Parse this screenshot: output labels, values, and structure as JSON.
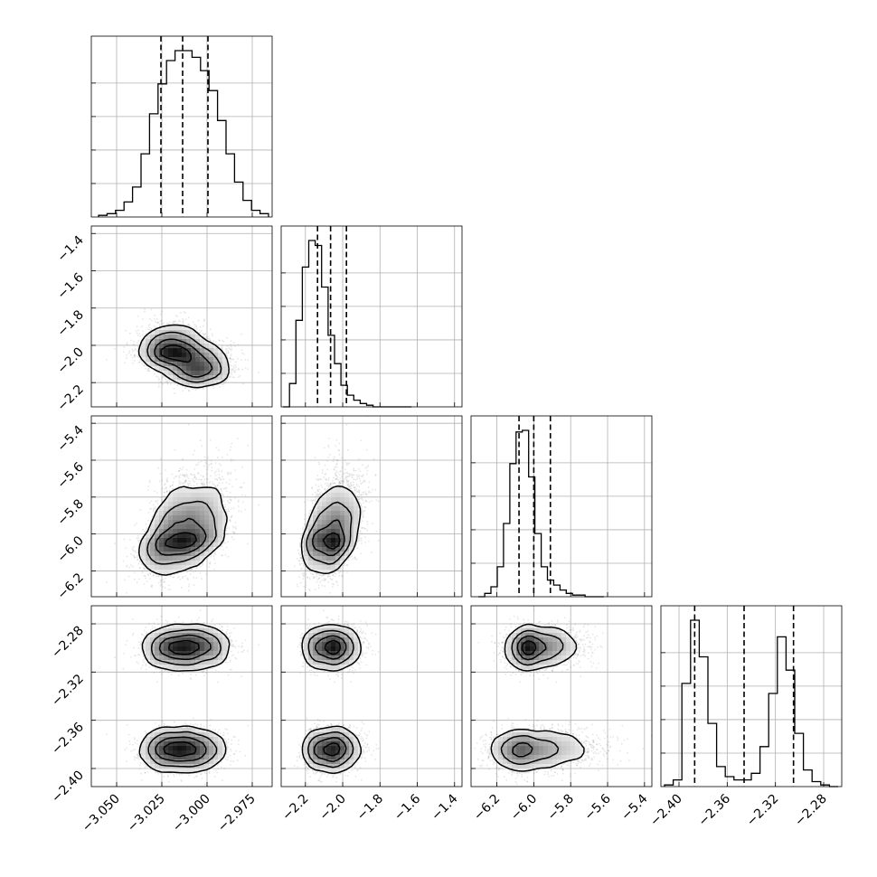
{
  "chart_data": {
    "type": "corner",
    "grid": true,
    "colors": {
      "line": "#000000",
      "samples": "#777777",
      "grid": "#b0b0b0"
    },
    "parameters": [
      {
        "range": [
          -3.064,
          -2.964
        ],
        "ticks": [
          -3.05,
          -3.025,
          -3.0,
          -2.975
        ],
        "tick_labels": [
          "−3.050",
          "−3.025",
          "−3.000",
          "−2.975"
        ],
        "quantiles": [
          -3.0255,
          -3.0135,
          -2.9995
        ],
        "hist": [
          1,
          2,
          4,
          9,
          18,
          38,
          62,
          80,
          94,
          100,
          100,
          96,
          88,
          76,
          58,
          38,
          21,
          10,
          4,
          2
        ]
      },
      {
        "range": [
          -2.33,
          -1.36
        ],
        "ticks": [
          -2.2,
          -2.0,
          -1.8,
          -1.6,
          -1.4
        ],
        "tick_labels": [
          "−2.2",
          "−2.0",
          "−1.8",
          "−1.6",
          "−1.4"
        ],
        "quantiles": [
          -2.135,
          -2.065,
          -1.98
        ],
        "hist": [
          0,
          14,
          52,
          84,
          100,
          97,
          72,
          43,
          26,
          13,
          7,
          4,
          2,
          1,
          0,
          0,
          0,
          0,
          0,
          0
        ]
      },
      {
        "range": [
          -6.34,
          -5.36
        ],
        "ticks": [
          -6.2,
          -6.0,
          -5.8,
          -5.6,
          -5.4
        ],
        "tick_labels": [
          "−6.2",
          "−6.0",
          "−5.8",
          "−5.6",
          "−5.4"
        ],
        "quantiles": [
          -6.08,
          -6.0,
          -5.91
        ],
        "hist": [
          0,
          2,
          6,
          18,
          44,
          80,
          99,
          100,
          72,
          38,
          18,
          10,
          7,
          4,
          2,
          1,
          1,
          0,
          0,
          0
        ]
      },
      {
        "range": [
          -2.415,
          -2.265
        ],
        "ticks": [
          -2.4,
          -2.36,
          -2.32,
          -2.28
        ],
        "tick_labels": [
          "−2.40",
          "−2.36",
          "−2.32",
          "−2.28"
        ],
        "quantiles": [
          -2.387,
          -2.346,
          -2.305
        ],
        "hist": [
          1,
          4,
          62,
          100,
          78,
          38,
          12,
          6,
          4,
          4,
          8,
          24,
          56,
          90,
          70,
          32,
          10,
          3,
          1,
          0
        ]
      }
    ],
    "modes": [
      {
        "centers": [
          -3.0185,
          -2.028,
          -6.01,
          -2.3
        ],
        "sigmas": [
          0.0085,
          0.045,
          0.07,
          0.0085
        ],
        "weight": 0.27
      },
      {
        "centers": [
          -3.0035,
          -2.12,
          -5.99,
          -2.3
        ],
        "sigmas": [
          0.0085,
          0.045,
          0.07,
          0.0085
        ],
        "weight": 0.23
      },
      {
        "centers": [
          -3.0205,
          -2.028,
          -6.03,
          -2.385
        ],
        "sigmas": [
          0.0085,
          0.045,
          0.1,
          0.0085
        ],
        "weight": 0.27
      },
      {
        "centers": [
          -3.0065,
          -2.12,
          -6.02,
          -2.385
        ],
        "sigmas": [
          0.0085,
          0.045,
          0.1,
          0.0085
        ],
        "weight": 0.23
      }
    ],
    "correlations": {
      "0-2": 0.45,
      "1-2": 0.55,
      "2-3": 0.35
    }
  }
}
